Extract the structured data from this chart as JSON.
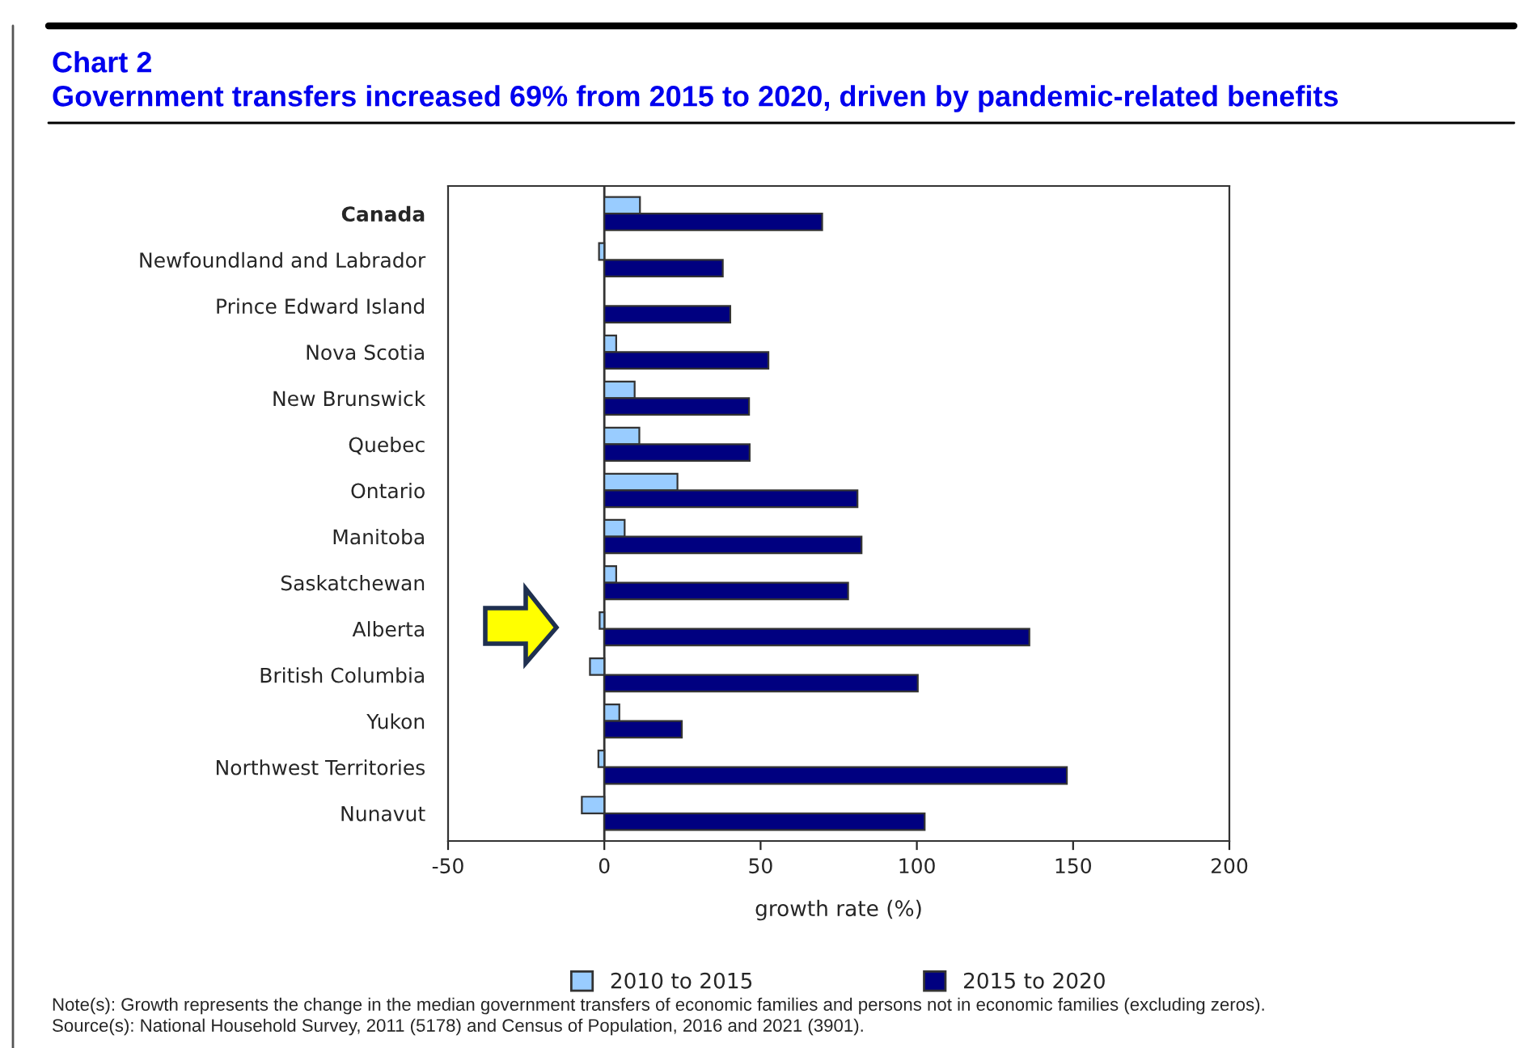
{
  "chart_data": {
    "type": "bar",
    "orientation": "horizontal",
    "title": "Chart 2",
    "subtitle": "Government transfers increased 69% from 2015 to 2020, driven by pandemic-related benefits",
    "xlabel": "growth rate (%)",
    "categories": [
      "Canada",
      "Newfoundland and Labrador",
      "Prince Edward Island",
      "Nova Scotia",
      "New Brunswick",
      "Quebec",
      "Ontario",
      "Manitoba",
      "Saskatchewan",
      "Alberta",
      "British Columbia",
      "Yukon",
      "Northwest Territories",
      "Nunavut"
    ],
    "series": [
      {
        "name": "2010 to 2015",
        "color": "#99ccff",
        "values": [
          11.4,
          -1.7,
          null,
          3.8,
          9.7,
          11.2,
          23.4,
          6.5,
          3.8,
          -1.5,
          -4.6,
          4.8,
          -1.9,
          -7.2
        ]
      },
      {
        "name": "2015 to 2020",
        "color": "#000080",
        "values": [
          69.7,
          37.9,
          40.3,
          52.5,
          46.3,
          46.5,
          81,
          82.3,
          78,
          136,
          100.3,
          24.8,
          148,
          102.5
        ]
      }
    ],
    "xlim": [
      -50,
      200
    ],
    "xticks": [
      -50,
      0,
      50,
      100,
      150,
      200
    ],
    "grid": false,
    "legend": "bottom",
    "ref_lines": [
      {
        "axis": "x",
        "value": 0,
        "color": "#333333"
      }
    ],
    "annotations": [
      "Note(s): Growth represents the change in the median government transfers of economic families and persons not in economic families (excluding zeros).",
      "Source(s): National Household Survey, 2011 (5178) and Census of Population, 2016 and 2021 (3901)."
    ]
  }
}
